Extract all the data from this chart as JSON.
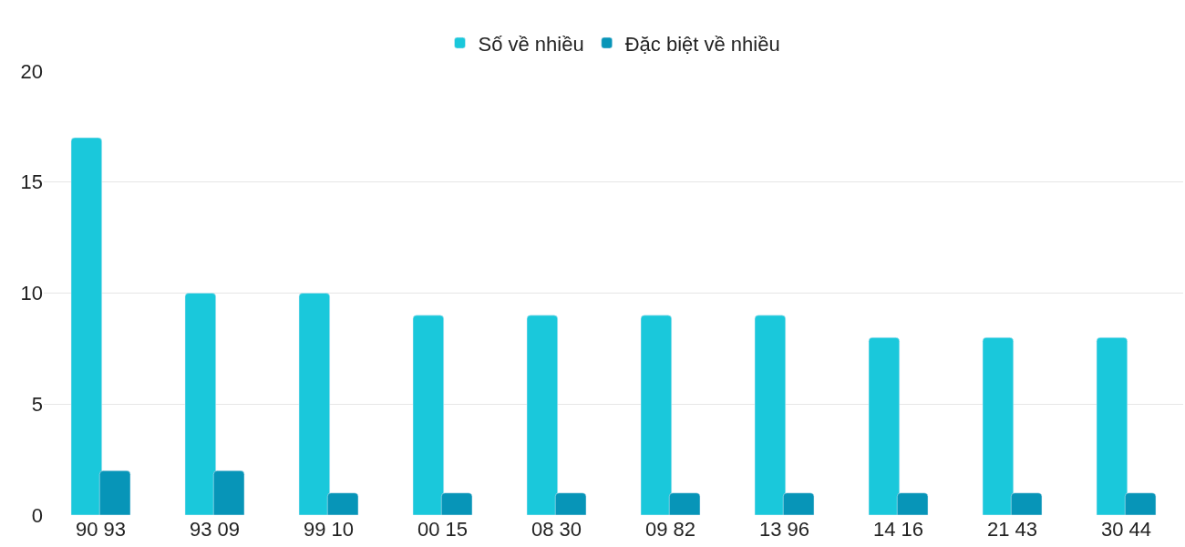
{
  "chart_data": {
    "type": "bar",
    "categories": [
      "90 93",
      "93 09",
      "99 10",
      "00 15",
      "08 30",
      "09 82",
      "13 96",
      "14 16",
      "21 43",
      "30 44"
    ],
    "series": [
      {
        "name": "Số về nhiều",
        "color": "#1ac8db",
        "values": [
          17,
          10,
          10,
          9,
          9,
          9,
          9,
          8,
          8,
          8
        ]
      },
      {
        "name": "Đặc biệt về nhiều",
        "color": "#0795b8",
        "values": [
          2,
          2,
          1,
          1,
          1,
          1,
          1,
          1,
          1,
          1
        ]
      }
    ],
    "ylim": [
      0,
      20
    ],
    "yticks": [
      0,
      5,
      10,
      15,
      20
    ],
    "grid": "y",
    "legend": "top"
  }
}
